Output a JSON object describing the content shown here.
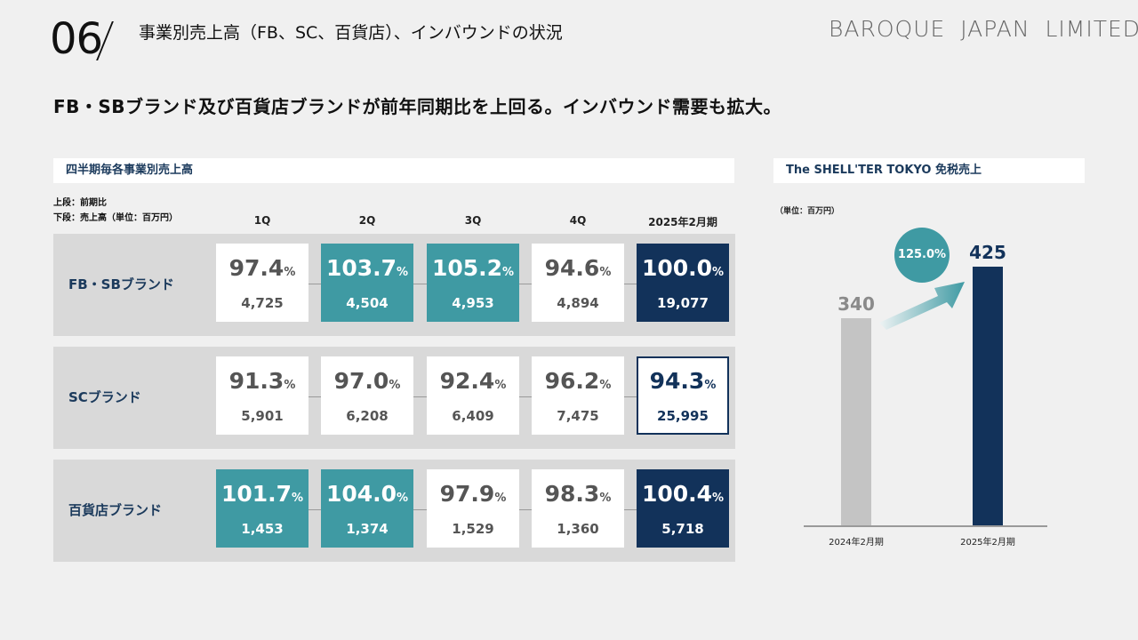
{
  "header": {
    "page_number": "06",
    "title": "事業別売上高（FB、SC、百貨店）、インバウンドの状況",
    "brand": "BAROQUE JAPAN LIMITED"
  },
  "headline": "FB・SBブランド及び百貨店ブランドが前年同期比を上回る。インバウンド需要も拡大。",
  "quarterly": {
    "title": "四半期毎各事業別売上高",
    "legend_top": "上段：前期比",
    "legend_bottom": "下段：売上高（単位：百万円）",
    "columns": [
      "1Q",
      "2Q",
      "3Q",
      "4Q",
      "2025年2月期"
    ],
    "pct_unit": "%",
    "rows": [
      {
        "label": "FB・SBブランド",
        "cells": [
          {
            "pct": "97.4",
            "amount": "4,725",
            "style": "white"
          },
          {
            "pct": "103.7",
            "amount": "4,504",
            "style": "teal"
          },
          {
            "pct": "105.2",
            "amount": "4,953",
            "style": "teal"
          },
          {
            "pct": "94.6",
            "amount": "4,894",
            "style": "white"
          },
          {
            "pct": "100.0",
            "amount": "19,077",
            "style": "navy"
          }
        ]
      },
      {
        "label": "SCブランド",
        "cells": [
          {
            "pct": "91.3",
            "amount": "5,901",
            "style": "white"
          },
          {
            "pct": "97.0",
            "amount": "6,208",
            "style": "white"
          },
          {
            "pct": "92.4",
            "amount": "6,409",
            "style": "white"
          },
          {
            "pct": "96.2",
            "amount": "7,475",
            "style": "white"
          },
          {
            "pct": "94.3",
            "amount": "25,995",
            "style": "outline"
          }
        ]
      },
      {
        "label": "百貨店ブランド",
        "cells": [
          {
            "pct": "101.7",
            "amount": "1,453",
            "style": "teal"
          },
          {
            "pct": "104.0",
            "amount": "1,374",
            "style": "teal"
          },
          {
            "pct": "97.9",
            "amount": "1,529",
            "style": "white"
          },
          {
            "pct": "98.3",
            "amount": "1,360",
            "style": "white"
          },
          {
            "pct": "100.4",
            "amount": "5,718",
            "style": "navy"
          }
        ]
      }
    ]
  },
  "colors": {
    "navy": "#12325a",
    "teal": "#3f9aa3",
    "gray_bar": "#c4c4c4",
    "panel_bg": "#d9d9d9"
  },
  "chart_data": {
    "type": "bar",
    "title": "The SHELL'TER TOKYO 免税売上",
    "unit_label": "（単位：百万円）",
    "categories": [
      "2024年2月期",
      "2025年2月期"
    ],
    "values": [
      340,
      425
    ],
    "value_labels": [
      "340",
      "425"
    ],
    "bar_colors": [
      "#c4c4c4",
      "#12325a"
    ],
    "growth_label": "125.0%",
    "ylim": [
      0,
      425
    ],
    "grid": false
  }
}
